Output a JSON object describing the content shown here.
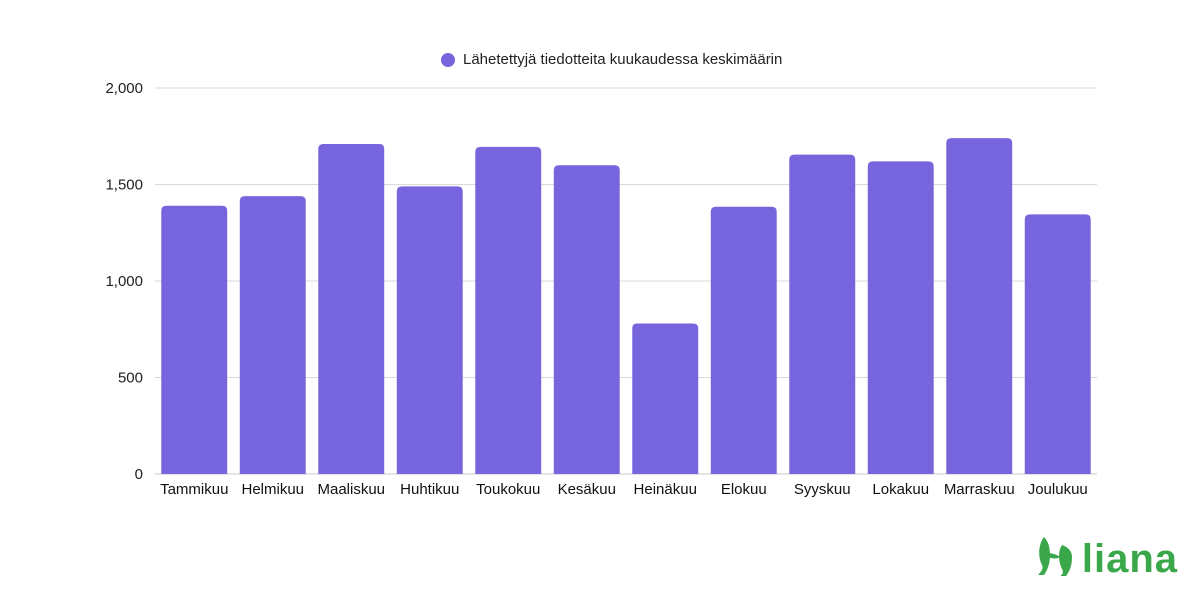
{
  "chart_data": {
    "type": "bar",
    "categories": [
      "Tammikuu",
      "Helmikuu",
      "Maaliskuu",
      "Huhtikuu",
      "Toukokuu",
      "Kesäkuu",
      "Heinäkuu",
      "Elokuu",
      "Syyskuu",
      "Lokakuu",
      "Marraskuu",
      "Joulukuu"
    ],
    "series": [
      {
        "name": "Lähetettyjä tiedotteita kuukaudessa keskimäärin",
        "values": [
          1390,
          1440,
          1710,
          1490,
          1695,
          1600,
          780,
          1385,
          1655,
          1620,
          1740,
          1345
        ],
        "color": "#7765dd"
      }
    ],
    "yticks": [
      "0",
      "500",
      "1,000",
      "1,500",
      "2,000"
    ],
    "ylim": [
      0,
      2000
    ],
    "grid": true,
    "legend_position": "top-center"
  },
  "logo": {
    "text": "liana",
    "color": "#3aa84a"
  }
}
